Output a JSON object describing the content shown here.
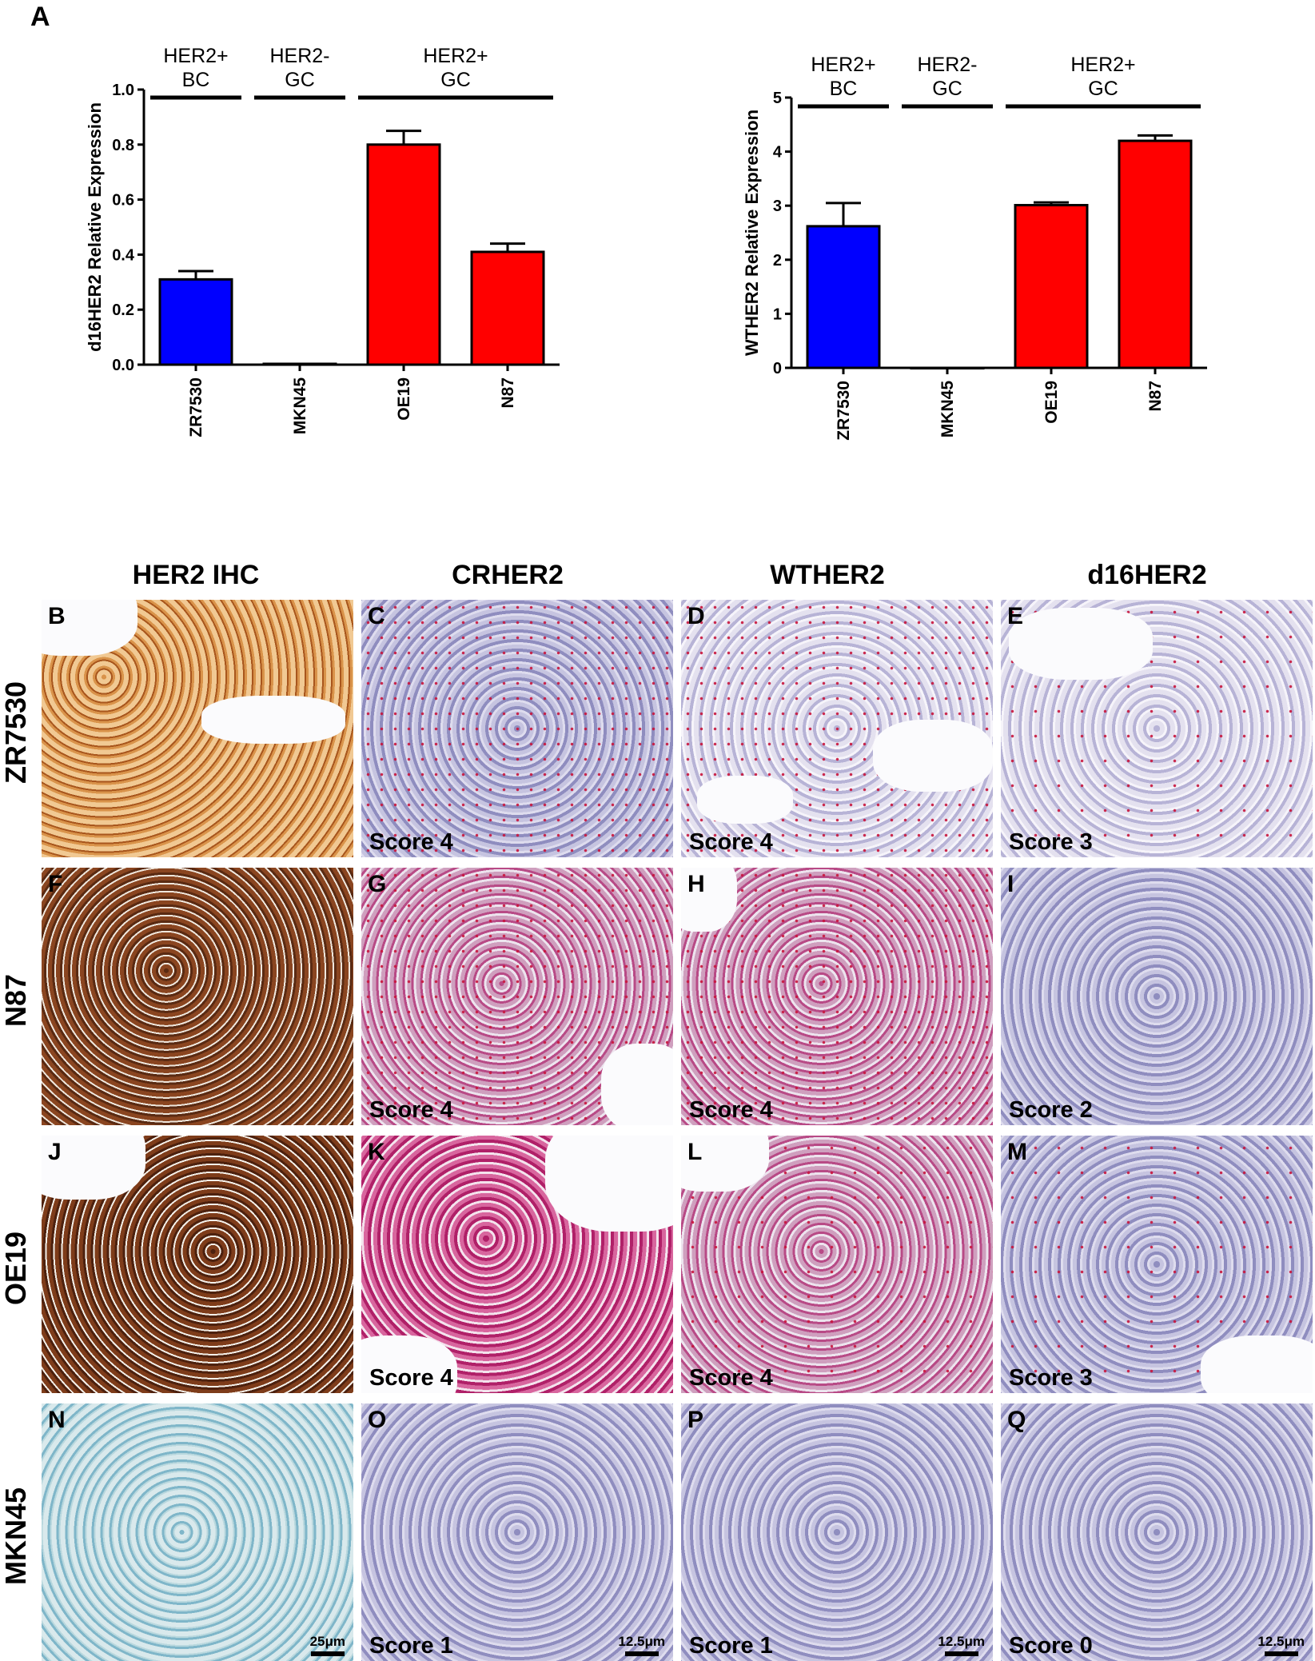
{
  "panel_a_letter": "A",
  "chart_data": [
    {
      "type": "bar",
      "categories": [
        "ZR7530",
        "MKN45",
        "OE19",
        "N87"
      ],
      "values": [
        0.31,
        0.003,
        0.8,
        0.41
      ],
      "errors": [
        0.03,
        0.0,
        0.05,
        0.03
      ],
      "colors": [
        "#0000ff",
        "#ff0000",
        "#ff0000",
        "#ff0000"
      ],
      "ylabel": "d16HER2 Relative Expression",
      "ylim": [
        0,
        1.0
      ],
      "yticks": [
        "0.0",
        "0.2",
        "0.4",
        "0.6",
        "0.8",
        "1.0"
      ],
      "groups": [
        {
          "label_line1": "HER2+",
          "label_line2": "BC",
          "categories": [
            "ZR7530"
          ]
        },
        {
          "label_line1": "HER2-",
          "label_line2": "GC",
          "categories": [
            "MKN45"
          ]
        },
        {
          "label_line1": "HER2+",
          "label_line2": "GC",
          "categories": [
            "OE19",
            "N87"
          ]
        }
      ]
    },
    {
      "type": "bar",
      "categories": [
        "ZR7530",
        "MKN45",
        "OE19",
        "N87"
      ],
      "values": [
        2.62,
        0.0,
        3.01,
        4.2
      ],
      "errors": [
        0.43,
        0.0,
        0.05,
        0.1
      ],
      "colors": [
        "#0000ff",
        "#ff0000",
        "#ff0000",
        "#ff0000"
      ],
      "ylabel": "WTHER2 Relative Expression",
      "ylim": [
        0,
        5
      ],
      "yticks": [
        "0",
        "1",
        "2",
        "3",
        "4",
        "5"
      ],
      "groups": [
        {
          "label_line1": "HER2+",
          "label_line2": "BC",
          "categories": [
            "ZR7530"
          ]
        },
        {
          "label_line1": "HER2-",
          "label_line2": "GC",
          "categories": [
            "MKN45"
          ]
        },
        {
          "label_line1": "HER2+",
          "label_line2": "GC",
          "categories": [
            "OE19",
            "N87"
          ]
        }
      ]
    }
  ],
  "grid": {
    "columns": [
      "HER2 IHC",
      "CRHER2",
      "WTHER2",
      "d16HER2"
    ],
    "rows": [
      {
        "label": "ZR7530",
        "tiles": [
          {
            "letter": "B",
            "score": "",
            "scale": ""
          },
          {
            "letter": "C",
            "score": "Score 4",
            "scale": ""
          },
          {
            "letter": "D",
            "score": "Score 4",
            "scale": ""
          },
          {
            "letter": "E",
            "score": "Score 3",
            "scale": ""
          }
        ]
      },
      {
        "label": "N87",
        "tiles": [
          {
            "letter": "F",
            "score": "",
            "scale": ""
          },
          {
            "letter": "G",
            "score": "Score 4",
            "scale": ""
          },
          {
            "letter": "H",
            "score": "Score 4",
            "scale": ""
          },
          {
            "letter": "I",
            "score": "Score 2",
            "scale": ""
          }
        ]
      },
      {
        "label": "OE19",
        "tiles": [
          {
            "letter": "J",
            "score": "",
            "scale": ""
          },
          {
            "letter": "K",
            "score": "Score 4",
            "scale": ""
          },
          {
            "letter": "L",
            "score": "Score 4",
            "scale": ""
          },
          {
            "letter": "M",
            "score": "Score 3",
            "scale": ""
          }
        ]
      },
      {
        "label": "MKN45",
        "tiles": [
          {
            "letter": "N",
            "score": "",
            "scale": "25μm"
          },
          {
            "letter": "O",
            "score": "Score 1",
            "scale": "12.5μm"
          },
          {
            "letter": "P",
            "score": "Score 1",
            "scale": "12.5μm"
          },
          {
            "letter": "Q",
            "score": "Score 0",
            "scale": "12.5μm"
          }
        ]
      }
    ]
  }
}
